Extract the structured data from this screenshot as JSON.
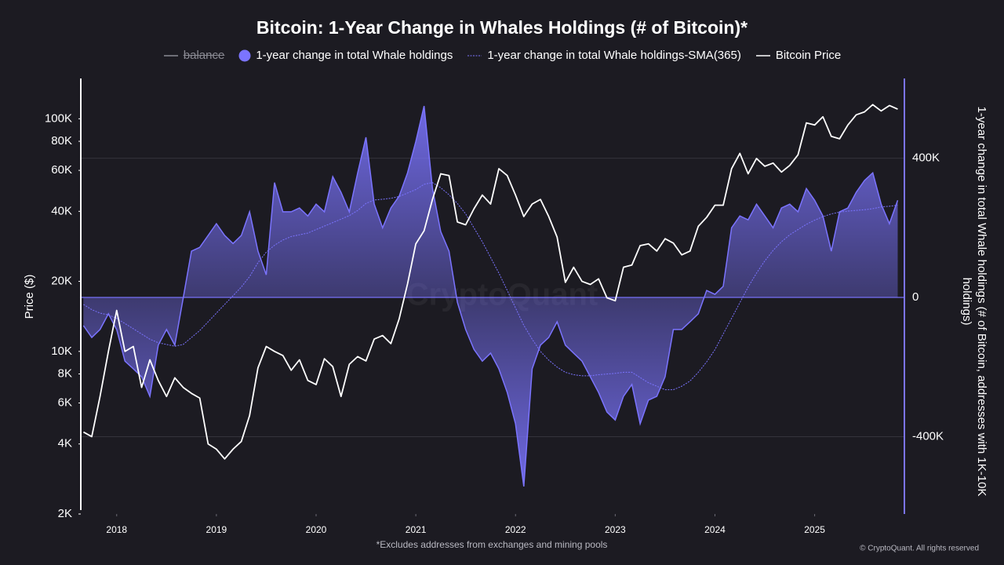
{
  "chart_data": {
    "type": "line",
    "title": "Bitcoin: 1-Year Change in Whales Holdings (# of Bitcoin)*",
    "ylabel": "Price ($)",
    "y2label": "1-year change in total Whale holdings (# of Bitcoin, addresses with 1K-10K holdings)",
    "footnote": "*Excludes addresses from exchanges and mining pools",
    "credit": "© CryptoQuant. All rights reserved",
    "watermark": "CryptoQuant",
    "y_log": true,
    "grid": true,
    "xlim": [
      2017.64,
      2025.9
    ],
    "xticks": [
      2018,
      2019,
      2020,
      2021,
      2022,
      2023,
      2024,
      2025
    ],
    "ylim": [
      2000,
      149000
    ],
    "yticks": [
      {
        "value": 2000,
        "label": "2K"
      },
      {
        "value": 4000,
        "label": "4K"
      },
      {
        "value": 6000,
        "label": "6K"
      },
      {
        "value": 8000,
        "label": "8K"
      },
      {
        "value": 10000,
        "label": "10K"
      },
      {
        "value": 20000,
        "label": "20K"
      },
      {
        "value": 40000,
        "label": "40K"
      },
      {
        "value": 60000,
        "label": "60K"
      },
      {
        "value": 80000,
        "label": "80K"
      },
      {
        "value": 100000,
        "label": "100K"
      }
    ],
    "y2lim": [
      -622000,
      629000
    ],
    "y2ticks": [
      {
        "value": -400000,
        "label": "-400K"
      },
      0,
      {
        "value": 400000,
        "label": "400K"
      }
    ],
    "x": [
      2017.667,
      2017.75,
      2017.833,
      2017.917,
      2018.0,
      2018.083,
      2018.167,
      2018.25,
      2018.333,
      2018.417,
      2018.5,
      2018.583,
      2018.667,
      2018.75,
      2018.833,
      2018.917,
      2019.0,
      2019.083,
      2019.167,
      2019.25,
      2019.333,
      2019.417,
      2019.5,
      2019.583,
      2019.667,
      2019.75,
      2019.833,
      2019.917,
      2020.0,
      2020.083,
      2020.167,
      2020.25,
      2020.333,
      2020.417,
      2020.5,
      2020.583,
      2020.667,
      2020.75,
      2020.833,
      2020.917,
      2021.0,
      2021.083,
      2021.167,
      2021.25,
      2021.333,
      2021.417,
      2021.5,
      2021.583,
      2021.667,
      2021.75,
      2021.833,
      2021.917,
      2022.0,
      2022.083,
      2022.167,
      2022.25,
      2022.333,
      2022.417,
      2022.5,
      2022.583,
      2022.667,
      2022.75,
      2022.833,
      2022.917,
      2023.0,
      2023.083,
      2023.167,
      2023.25,
      2023.333,
      2023.417,
      2023.5,
      2023.583,
      2023.667,
      2023.75,
      2023.833,
      2023.917,
      2024.0,
      2024.083,
      2024.167,
      2024.25,
      2024.333,
      2024.417,
      2024.5,
      2024.583,
      2024.667,
      2024.75,
      2024.833,
      2024.917,
      2025.0,
      2025.083,
      2025.167,
      2025.25,
      2025.333,
      2025.417,
      2025.5,
      2025.583,
      2025.667,
      2025.75,
      2025.833
    ],
    "series": [
      {
        "name": "balance",
        "color": "#8a8a93",
        "hidden": true
      },
      {
        "name": "1-year change in total Whale holdings",
        "color": "#7b74ff",
        "style": "area",
        "axis": "y2",
        "values": [
          -81000,
          -115000,
          -92000,
          -47000,
          -92000,
          -183000,
          -205000,
          -228000,
          -284000,
          -137000,
          -92000,
          -137000,
          -2000,
          133000,
          144000,
          178000,
          212000,
          178000,
          155000,
          178000,
          246000,
          133000,
          65000,
          330000,
          246000,
          246000,
          257000,
          234000,
          268000,
          246000,
          347000,
          302000,
          246000,
          358000,
          460000,
          268000,
          200000,
          257000,
          291000,
          358000,
          448000,
          550000,
          313000,
          189000,
          133000,
          -14000,
          -92000,
          -149000,
          -183000,
          -160000,
          -205000,
          -273000,
          -363000,
          -543000,
          -205000,
          -137000,
          -115000,
          -70000,
          -137000,
          -160000,
          -183000,
          -228000,
          -273000,
          -329000,
          -352000,
          -284000,
          -250000,
          -363000,
          -295000,
          -284000,
          -228000,
          -92000,
          -92000,
          -70000,
          -47000,
          20000,
          9000,
          32000,
          200000,
          234000,
          223000,
          268000,
          234000,
          200000,
          257000,
          268000,
          246000,
          313000,
          279000,
          234000,
          133000,
          246000,
          257000,
          302000,
          336000,
          358000,
          268000,
          212000,
          279000
        ]
      },
      {
        "name": "1-year change in total Whale holdings-SMA(365)",
        "color": "#7b74ff",
        "style": "dotted",
        "axis": "y2",
        "values": [
          -20000,
          -35000,
          -45000,
          -50000,
          -60000,
          -75000,
          -90000,
          -105000,
          -120000,
          -130000,
          -135000,
          -140000,
          -135000,
          -115000,
          -95000,
          -70000,
          -45000,
          -20000,
          5000,
          30000,
          60000,
          100000,
          130000,
          150000,
          165000,
          175000,
          180000,
          185000,
          195000,
          205000,
          215000,
          225000,
          235000,
          250000,
          270000,
          280000,
          282000,
          285000,
          290000,
          300000,
          310000,
          325000,
          330000,
          315000,
          295000,
          270000,
          240000,
          200000,
          160000,
          115000,
          70000,
          20000,
          -30000,
          -80000,
          -120000,
          -155000,
          -180000,
          -200000,
          -215000,
          -222000,
          -225000,
          -225000,
          -222000,
          -220000,
          -218000,
          -215000,
          -215000,
          -230000,
          -245000,
          -255000,
          -265000,
          -265000,
          -255000,
          -240000,
          -215000,
          -185000,
          -150000,
          -105000,
          -60000,
          -15000,
          30000,
          70000,
          105000,
          135000,
          160000,
          180000,
          195000,
          210000,
          222000,
          232000,
          240000,
          245000,
          248000,
          250000,
          252000,
          255000,
          260000,
          262000,
          265000
        ]
      },
      {
        "name": "Bitcoin Price",
        "color": "#ffffff",
        "style": "line",
        "values": [
          4500,
          4300,
          6400,
          10000,
          15000,
          10000,
          10500,
          7000,
          9200,
          7500,
          6400,
          7700,
          7000,
          6600,
          6300,
          4000,
          3800,
          3450,
          3800,
          4100,
          5300,
          8500,
          10500,
          10000,
          9600,
          8300,
          9200,
          7500,
          7200,
          9300,
          8600,
          6400,
          8800,
          9500,
          9100,
          11300,
          11700,
          10800,
          13800,
          19500,
          29000,
          33000,
          45000,
          58000,
          57000,
          36000,
          35000,
          41000,
          47000,
          43000,
          61000,
          57000,
          47000,
          38000,
          43000,
          45000,
          38000,
          31000,
          19800,
          23000,
          20000,
          19400,
          20500,
          17000,
          16500,
          23000,
          23500,
          28500,
          29000,
          27000,
          30500,
          29200,
          26000,
          27000,
          34500,
          37700,
          42500,
          42500,
          61000,
          71000,
          58000,
          67500,
          62500,
          64500,
          59000,
          63000,
          70000,
          96000,
          94000,
          102000,
          84000,
          82000,
          94000,
          104000,
          107000,
          115000,
          108000,
          114000,
          110000
        ]
      }
    ]
  }
}
